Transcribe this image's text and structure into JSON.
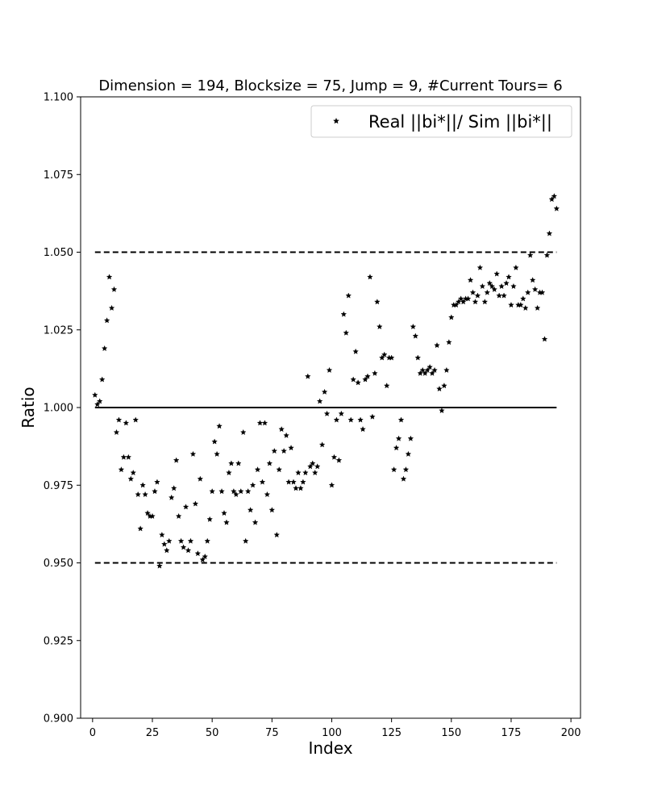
{
  "chart_data": {
    "type": "scatter",
    "title": "Dimension = 194, Blocksize = 75, Jump = 9, #Current Tours= 6",
    "xlabel": "Index",
    "ylabel": "Ratio",
    "xlim": [
      -5,
      204
    ],
    "ylim": [
      0.9,
      1.1
    ],
    "x_ticks": [
      0,
      25,
      50,
      75,
      100,
      125,
      150,
      175,
      200
    ],
    "y_ticks": [
      0.9,
      0.925,
      0.95,
      0.975,
      1.0,
      1.025,
      1.05,
      1.075,
      1.1
    ],
    "x_tick_labels": [
      "0",
      "25",
      "50",
      "75",
      "100",
      "125",
      "150",
      "175",
      "200"
    ],
    "y_tick_labels": [
      "0.900",
      "0.925",
      "0.950",
      "0.975",
      "1.000",
      "1.025",
      "1.050",
      "1.075",
      "1.100"
    ],
    "grid": false,
    "legend_position": "top-right",
    "reference_lines": [
      {
        "y": 1.05,
        "style": "dashed",
        "x_range": [
          1,
          194
        ]
      },
      {
        "y": 1.0,
        "style": "solid",
        "x_range": [
          1,
          194
        ]
      },
      {
        "y": 0.95,
        "style": "dashed",
        "x_range": [
          1,
          194
        ]
      }
    ],
    "series": [
      {
        "name": "Real ||bi*||/ Sim ||bi*||",
        "marker": "star",
        "color": "#000000",
        "x": [
          1,
          2,
          3,
          4,
          5,
          6,
          7,
          8,
          9,
          10,
          11,
          12,
          13,
          14,
          15,
          16,
          17,
          18,
          19,
          20,
          21,
          22,
          23,
          24,
          25,
          26,
          27,
          28,
          29,
          30,
          31,
          32,
          33,
          34,
          35,
          36,
          37,
          38,
          39,
          40,
          41,
          42,
          43,
          44,
          45,
          46,
          47,
          48,
          49,
          50,
          51,
          52,
          53,
          54,
          55,
          56,
          57,
          58,
          59,
          60,
          61,
          62,
          63,
          64,
          65,
          66,
          67,
          68,
          69,
          70,
          71,
          72,
          73,
          74,
          75,
          76,
          77,
          78,
          79,
          80,
          81,
          82,
          83,
          84,
          85,
          86,
          87,
          88,
          89,
          90,
          91,
          92,
          93,
          94,
          95,
          96,
          97,
          98,
          99,
          100,
          101,
          102,
          103,
          104,
          105,
          106,
          107,
          108,
          109,
          110,
          111,
          112,
          113,
          114,
          115,
          116,
          117,
          118,
          119,
          120,
          121,
          122,
          123,
          124,
          125,
          126,
          127,
          128,
          129,
          130,
          131,
          132,
          133,
          134,
          135,
          136,
          137,
          138,
          139,
          140,
          141,
          142,
          143,
          144,
          145,
          146,
          147,
          148,
          149,
          150,
          151,
          152,
          153,
          154,
          155,
          156,
          157,
          158,
          159,
          160,
          161,
          162,
          163,
          164,
          165,
          166,
          167,
          168,
          169,
          170,
          171,
          172,
          173,
          174,
          175,
          176,
          177,
          178,
          179,
          180,
          181,
          182,
          183,
          184,
          185,
          186,
          187,
          188,
          189,
          190,
          191,
          192,
          193,
          194
        ],
        "y": [
          1.004,
          1.001,
          1.002,
          1.009,
          1.019,
          1.028,
          1.042,
          1.032,
          1.038,
          0.992,
          0.996,
          0.98,
          0.984,
          0.995,
          0.984,
          0.977,
          0.979,
          0.996,
          0.972,
          0.961,
          0.975,
          0.972,
          0.966,
          0.965,
          0.965,
          0.973,
          0.976,
          0.949,
          0.959,
          0.956,
          0.954,
          0.957,
          0.971,
          0.974,
          0.983,
          0.965,
          0.957,
          0.955,
          0.968,
          0.954,
          0.957,
          0.985,
          0.969,
          0.953,
          0.977,
          0.951,
          0.952,
          0.957,
          0.964,
          0.973,
          0.989,
          0.985,
          0.994,
          0.973,
          0.966,
          0.963,
          0.979,
          0.982,
          0.973,
          0.972,
          0.982,
          0.973,
          0.992,
          0.957,
          0.973,
          0.967,
          0.975,
          0.963,
          0.98,
          0.995,
          0.976,
          0.995,
          0.972,
          0.982,
          0.967,
          0.986,
          0.959,
          0.98,
          0.993,
          0.986,
          0.991,
          0.976,
          0.987,
          0.976,
          0.974,
          0.979,
          0.974,
          0.976,
          0.979,
          1.01,
          0.981,
          0.982,
          0.979,
          0.981,
          1.002,
          0.988,
          1.005,
          0.998,
          1.012,
          0.975,
          0.984,
          0.996,
          0.983,
          0.998,
          1.03,
          1.024,
          1.036,
          0.996,
          1.009,
          1.018,
          1.008,
          0.996,
          0.993,
          1.009,
          1.01,
          1.042,
          0.997,
          1.011,
          1.034,
          1.026,
          1.016,
          1.017,
          1.007,
          1.016,
          1.016,
          0.98,
          0.987,
          0.99,
          0.996,
          0.977,
          0.98,
          0.985,
          0.99,
          1.026,
          1.023,
          1.016,
          1.011,
          1.012,
          1.011,
          1.012,
          1.013,
          1.011,
          1.012,
          1.02,
          1.006,
          0.999,
          1.007,
          1.012,
          1.021,
          1.029,
          1.033,
          1.033,
          1.034,
          1.035,
          1.034,
          1.035,
          1.035,
          1.041,
          1.037,
          1.034,
          1.036,
          1.045,
          1.039,
          1.034,
          1.037,
          1.04,
          1.039,
          1.038,
          1.043,
          1.036,
          1.039,
          1.036,
          1.04,
          1.042,
          1.033,
          1.039,
          1.045,
          1.033,
          1.033,
          1.035,
          1.032,
          1.037,
          1.049,
          1.041,
          1.038,
          1.032,
          1.037,
          1.037,
          1.022,
          1.049,
          1.056,
          1.067,
          1.068,
          1.064
        ]
      }
    ]
  }
}
